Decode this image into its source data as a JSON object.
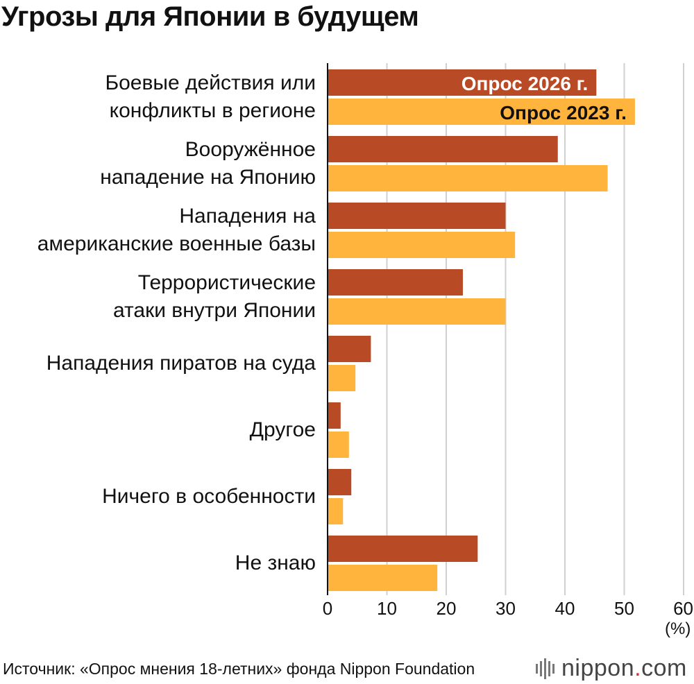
{
  "title": "Угрозы для Японии в будущем",
  "unit_label": "(%)",
  "source": "Источник: «Опрос мнения 18-летних» фонда Nippon Foundation",
  "logo": {
    "name": "nippon",
    "dot": ".",
    "domain": "com"
  },
  "colors": {
    "s2026": "#b84a26",
    "s2023": "#ffb43d",
    "grid": "#d0d0d0",
    "axis": "#111111"
  },
  "chart_data": {
    "type": "bar",
    "orientation": "horizontal",
    "title": "Угрозы для Японии в будущем",
    "xlabel": "(%)",
    "xlim": [
      0,
      60
    ],
    "xticks": [
      0,
      10,
      20,
      30,
      40,
      50,
      60
    ],
    "grid": true,
    "categories": [
      [
        "Боевые действия или",
        "конфликты в регионе"
      ],
      [
        "Вооружённое",
        "нападение на Японию"
      ],
      [
        "Нападения на",
        "американские военные базы"
      ],
      [
        "Террористические",
        "атаки внутри Японии"
      ],
      [
        "Нападения пиратов на суда"
      ],
      [
        "Другое"
      ],
      [
        "Ничего в особенности"
      ],
      [
        "Не знаю"
      ]
    ],
    "series": [
      {
        "name": "Опрос 2026 г.",
        "values": [
          45.3,
          38.8,
          30.0,
          22.8,
          7.3,
          2.2,
          4.0,
          25.3
        ]
      },
      {
        "name": "Опрос 2023 г.",
        "values": [
          51.8,
          47.2,
          31.6,
          30.0,
          4.7,
          3.6,
          2.6,
          18.5
        ]
      }
    ]
  }
}
